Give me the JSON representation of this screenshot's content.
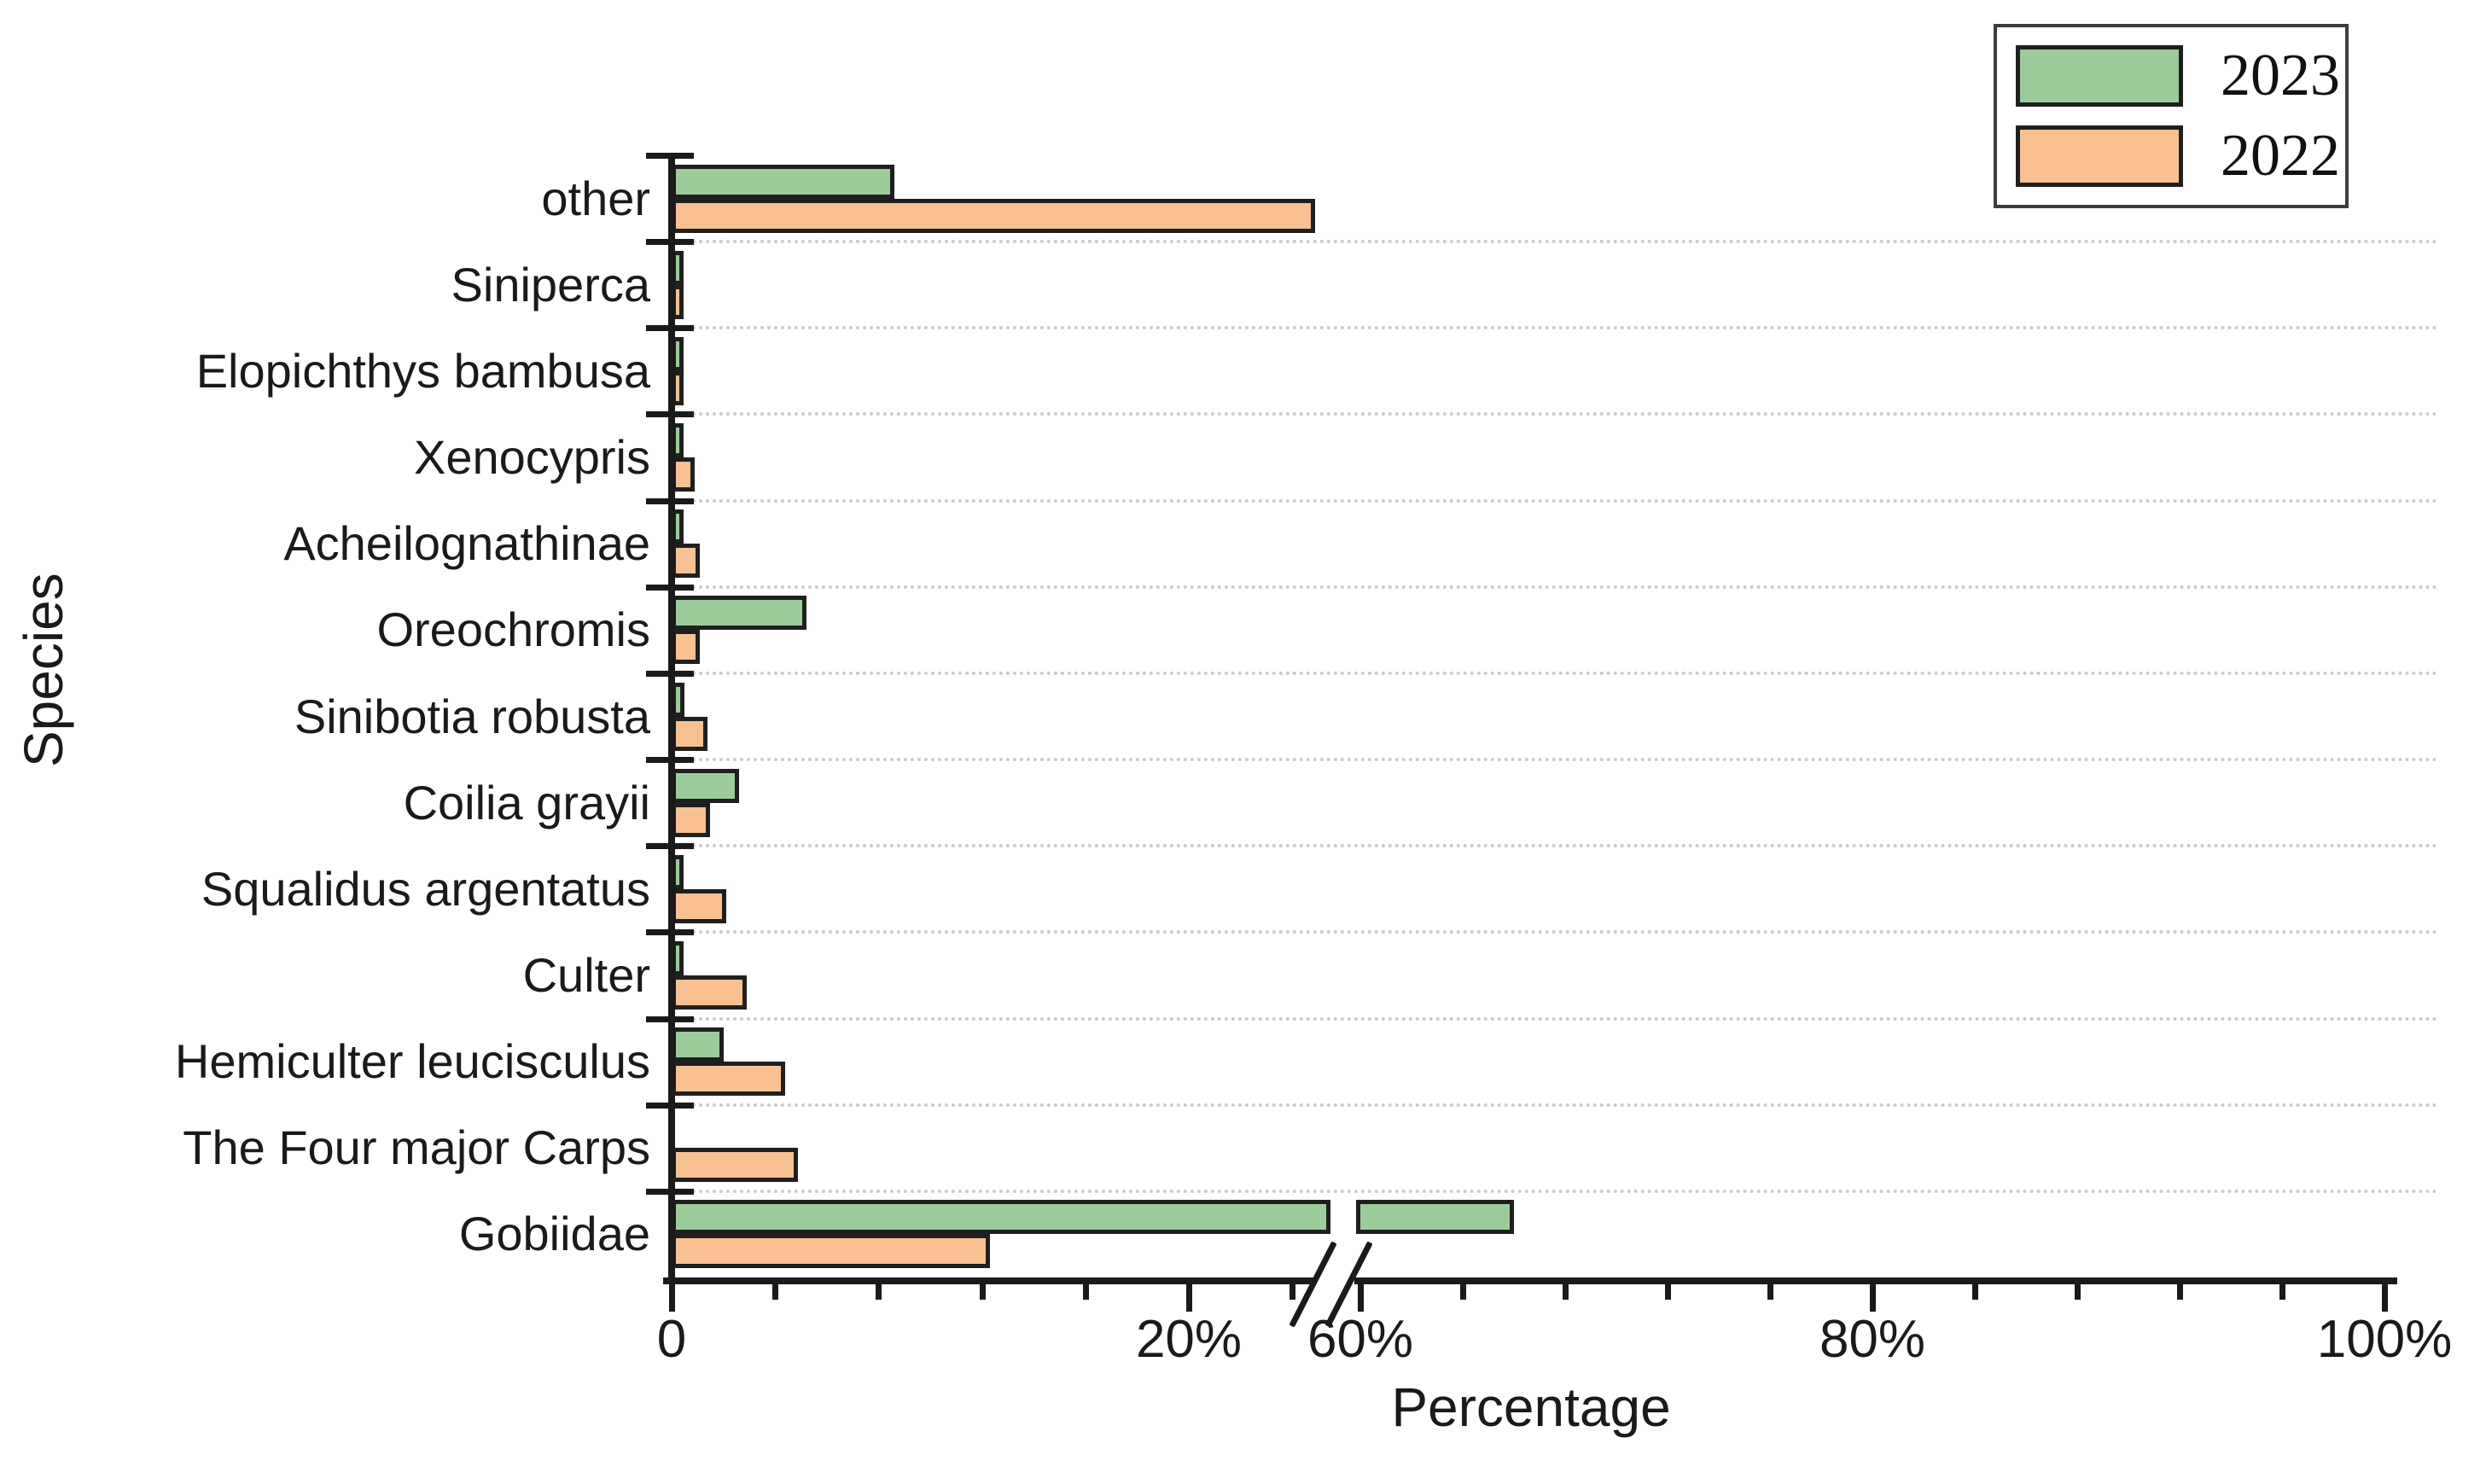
{
  "chart_data": {
    "type": "bar",
    "orientation": "horizontal",
    "title": "",
    "xlabel": "Percentage",
    "ylabel": "Species",
    "categories": [
      "other",
      "Siniperca",
      "Elopichthys bambusa",
      "Xenocypris",
      "Acheilognathinae",
      "Oreochromis",
      "Sinibotia robusta",
      "Coilia grayii",
      "Squalidus argentatus",
      "Culter",
      "Hemiculter leucisculus",
      "The Four major Carps",
      "Gobiidae"
    ],
    "series": [
      {
        "name": "2023",
        "color": "#9bcd9b",
        "values": [
          8.6,
          0.2,
          0.1,
          0.2,
          0.2,
          5.2,
          0.5,
          2.6,
          0.3,
          0.2,
          2.0,
          0,
          66.0
        ]
      },
      {
        "name": "2022",
        "color": "#f8c18f",
        "values": [
          24.9,
          0.3,
          0.4,
          0.9,
          1.1,
          1.1,
          1.4,
          1.5,
          2.1,
          2.9,
          4.4,
          4.9,
          12.3
        ]
      }
    ],
    "x_axis": {
      "unit": "%",
      "range": [
        0,
        100
      ],
      "break": {
        "from": 25,
        "to": 60,
        "symbol": "//"
      },
      "major_ticks": [
        {
          "value": 0,
          "label": "0"
        },
        {
          "value": 20,
          "label": "20%"
        },
        {
          "value": 60,
          "label": "60%"
        },
        {
          "value": 80,
          "label": "80%"
        },
        {
          "value": 100,
          "label": "100%"
        }
      ],
      "minor_ticks": [
        4,
        8,
        12,
        16,
        24,
        64,
        68,
        72,
        76,
        84,
        88,
        92,
        96
      ]
    },
    "legend": {
      "position": "top-right",
      "entries": [
        "2023",
        "2022"
      ]
    },
    "grid": "horizontal-dotted",
    "notes": "Axis break between 25% and 60%; Gobiidae 2023 bar crosses the break with a white gap."
  },
  "style": {
    "bar_border": "#1f1f1f",
    "axis_color": "#1a1a1a",
    "gridline_color": "#cbcbcb",
    "background": "#ffffff"
  }
}
